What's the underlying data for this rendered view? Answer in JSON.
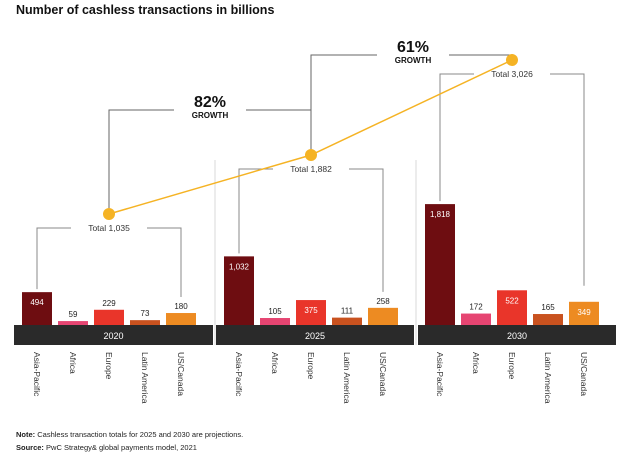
{
  "chart_data": {
    "type": "bar",
    "title": "Number of cashless transactions in billions",
    "categories": [
      "Asia-Pacific",
      "Africa",
      "Europe",
      "Latin America",
      "US/Canada"
    ],
    "groups": [
      {
        "year": "2020",
        "total_label": "Total 1,035",
        "total": 1035,
        "values": [
          494,
          59,
          229,
          73,
          180
        ]
      },
      {
        "year": "2025",
        "total_label": "Total 1,882",
        "total": 1882,
        "values": [
          1032,
          105,
          375,
          111,
          258
        ]
      },
      {
        "year": "2030",
        "total_label": "Total 3,026",
        "total": 3026,
        "values": [
          1818,
          172,
          522,
          165,
          349
        ]
      }
    ],
    "value_labels": [
      [
        "494",
        "59",
        "229",
        "73",
        "180"
      ],
      [
        "1,032",
        "105",
        "375",
        "111",
        "258"
      ],
      [
        "1,818",
        "172",
        "522",
        "165",
        "349"
      ]
    ],
    "series_colors": [
      "#6e0d11",
      "#e64572",
      "#e9352a",
      "#c9521f",
      "#ed8b22"
    ],
    "line_color": "#f5b324",
    "growth": [
      {
        "pct": "82%",
        "label": "GROWTH"
      },
      {
        "pct": "61%",
        "label": "GROWTH"
      }
    ],
    "ylim": [
      0,
      3200
    ]
  },
  "footer": {
    "note_label": "Note:",
    "note_text": " Cashless transaction totals for 2025 and 2030 are projections.",
    "source_label": "Source:",
    "source_text": " PwC Strategy& global payments model, 2021"
  }
}
